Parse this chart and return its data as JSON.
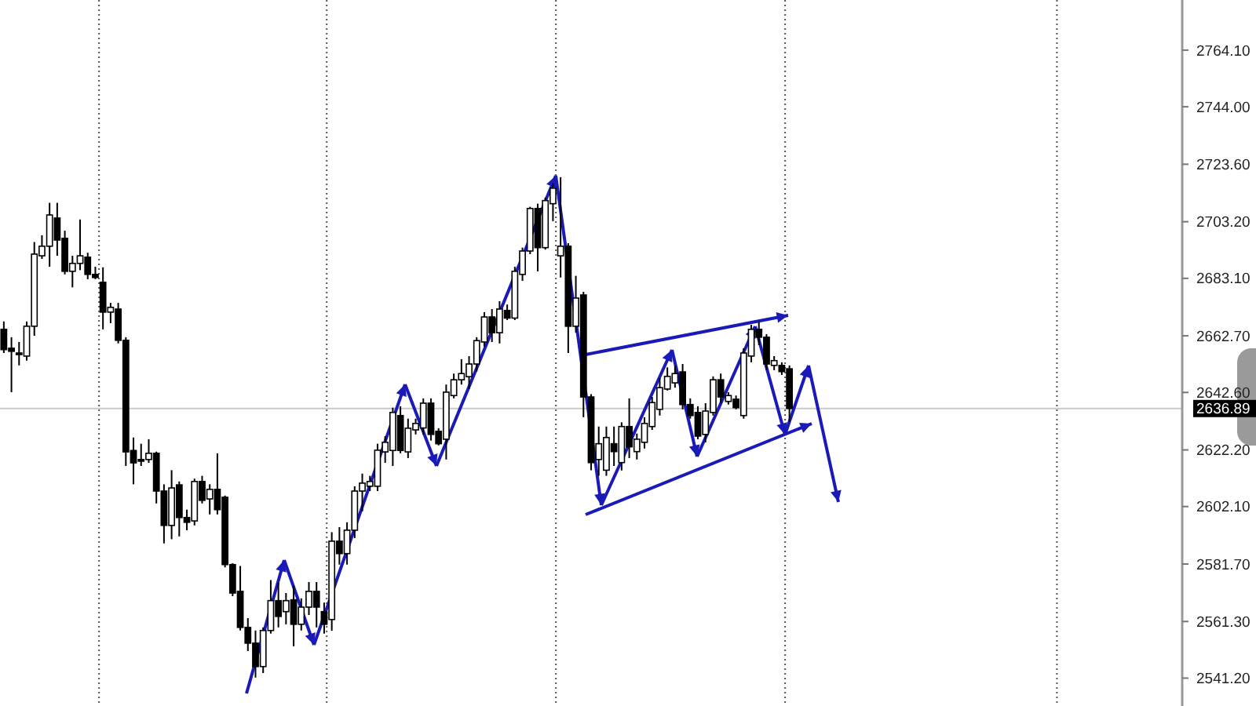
{
  "chart_data": {
    "type": "candlestick",
    "categories": [
      null,
      null,
      null,
      null,
      null,
      null,
      null,
      null,
      null,
      null,
      null,
      null,
      null,
      null,
      null,
      null,
      null,
      null,
      null,
      null,
      null,
      null,
      null,
      null,
      null,
      null,
      null,
      null,
      null,
      null,
      null,
      null,
      null,
      null,
      null,
      null,
      null,
      null,
      null,
      null,
      null,
      null,
      null,
      null,
      null,
      null,
      null,
      null,
      null,
      null,
      null,
      null,
      null,
      null,
      null,
      null,
      null,
      null,
      null,
      null,
      null,
      null,
      null,
      null,
      null,
      null,
      null,
      null,
      null,
      null,
      null,
      null,
      null,
      null,
      null,
      null,
      null,
      null,
      null,
      null,
      null,
      null,
      null,
      null,
      null,
      null,
      null,
      null,
      null,
      null,
      null,
      null,
      null,
      null,
      null,
      null,
      null,
      null,
      null,
      null,
      null,
      null,
      null,
      null,
      null,
      null,
      null,
      null,
      null,
      null,
      null,
      null,
      null,
      null,
      null,
      null,
      null,
      null,
      null,
      null,
      null,
      null,
      null,
      null,
      null,
      null,
      null,
      null,
      null,
      null,
      null,
      null,
      null,
      null,
      null,
      null,
      null,
      null,
      null,
      null,
      null,
      null,
      null,
      null,
      null,
      null,
      null,
      null,
      null,
      null,
      null,
      null,
      null,
      null,
      null
    ],
    "ohlc": [
      [
        2665.0,
        2667.8,
        2656.6,
        2657.8
      ],
      [
        2658.3,
        2662.2,
        2642.7,
        2657.2
      ],
      [
        2656.6,
        2660.5,
        2652.2,
        2656.1
      ],
      [
        2655.5,
        2667.8,
        2653.9,
        2666.1
      ],
      [
        2666.1,
        2696.0,
        2662.7,
        2691.7
      ],
      [
        2691.1,
        2698.4,
        2690.0,
        2694.5
      ],
      [
        2694.5,
        2709.9,
        2687.2,
        2705.6
      ],
      [
        2704.5,
        2709.9,
        2691.1,
        2696.7
      ],
      [
        2697.3,
        2700.0,
        2684.5,
        2685.6
      ],
      [
        2685.6,
        2691.1,
        2679.9,
        2688.4
      ],
      [
        2688.4,
        2704.0,
        2686.0,
        2691.1
      ],
      [
        2690.6,
        2692.2,
        2682.8,
        2684.5
      ],
      [
        2684.5,
        2687.2,
        2682.8,
        2683.4
      ],
      [
        2681.7,
        2687.0,
        2665.0,
        2671.1
      ],
      [
        2671.1,
        2674.4,
        2667.2,
        2672.8
      ],
      [
        2672.2,
        2674.4,
        2660.0,
        2661.1
      ],
      [
        2661.1,
        2662.2,
        2616.5,
        2621.5
      ],
      [
        2622.0,
        2626.6,
        2610.0,
        2617.6
      ],
      [
        2618.8,
        2624.4,
        2616.5,
        2618.2
      ],
      [
        2618.8,
        2626.0,
        2617.6,
        2621.0
      ],
      [
        2621.0,
        2621.6,
        2603.2,
        2607.6
      ],
      [
        2607.6,
        2610.0,
        2589.0,
        2595.4
      ],
      [
        2595.4,
        2615.0,
        2590.5,
        2608.7
      ],
      [
        2609.8,
        2611.0,
        2591.5,
        2598.2
      ],
      [
        2598.2,
        2601.0,
        2593.7,
        2596.5
      ],
      [
        2597.0,
        2612.0,
        2595.4,
        2611.0
      ],
      [
        2611.0,
        2613.0,
        2603.2,
        2604.3
      ],
      [
        2604.8,
        2610.0,
        2599.3,
        2608.2
      ],
      [
        2608.2,
        2621.0,
        2599.3,
        2601.0
      ],
      [
        2605.4,
        2606.0,
        2580.5,
        2581.5
      ],
      [
        2581.5,
        2582.0,
        2570.3,
        2571.4
      ],
      [
        2572.0,
        2581.0,
        2558.1,
        2559.2
      ],
      [
        2559.2,
        2562.5,
        2550.8,
        2553.6
      ],
      [
        2553.6,
        2558.1,
        2541.4,
        2545.3
      ],
      [
        2545.3,
        2559.2,
        2543.0,
        2558.1
      ],
      [
        2558.1,
        2576.0,
        2557.0,
        2568.7
      ],
      [
        2568.7,
        2575.0,
        2559.2,
        2563.1
      ],
      [
        2564.8,
        2571.4,
        2560.3,
        2568.7
      ],
      [
        2569.0,
        2574.0,
        2552.5,
        2560.3
      ],
      [
        2560.3,
        2569.5,
        2558.1,
        2566.4
      ],
      [
        2566.4,
        2575.3,
        2563.6,
        2572.0
      ],
      [
        2572.0,
        2575.3,
        2559.2,
        2566.4
      ],
      [
        2564.8,
        2568.0,
        2557.0,
        2560.3
      ],
      [
        2562.0,
        2593.0,
        2558.0,
        2589.8
      ],
      [
        2589.8,
        2594.8,
        2581.5,
        2585.4
      ],
      [
        2585.4,
        2596.5,
        2581.5,
        2593.7
      ],
      [
        2593.7,
        2609.3,
        2590.9,
        2607.6
      ],
      [
        2607.6,
        2613.8,
        2600.4,
        2610.4
      ],
      [
        2609.3,
        2613.0,
        2607.6,
        2611.0
      ],
      [
        2609.3,
        2624.4,
        2607.6,
        2622.1
      ],
      [
        2621.5,
        2627.1,
        2617.6,
        2624.9
      ],
      [
        2622.0,
        2637.2,
        2616.5,
        2635.5
      ],
      [
        2634.4,
        2637.7,
        2621.0,
        2622.0
      ],
      [
        2621.5,
        2633.3,
        2619.3,
        2629.9
      ],
      [
        2629.3,
        2633.3,
        2627.7,
        2631.6
      ],
      [
        2630.0,
        2640.5,
        2627.7,
        2638.8
      ],
      [
        2638.8,
        2640.5,
        2625.5,
        2627.7
      ],
      [
        2628.8,
        2629.9,
        2623.8,
        2624.4
      ],
      [
        2626.0,
        2645.4,
        2618.8,
        2642.7
      ],
      [
        2641.5,
        2649.3,
        2640.5,
        2647.1
      ],
      [
        2647.1,
        2654.4,
        2645.4,
        2649.3
      ],
      [
        2648.2,
        2655.5,
        2643.8,
        2652.7
      ],
      [
        2652.7,
        2662.2,
        2650.0,
        2661.0
      ],
      [
        2660.5,
        2671.1,
        2658.9,
        2669.4
      ],
      [
        2669.4,
        2672.2,
        2660.5,
        2663.8
      ],
      [
        2663.8,
        2675.0,
        2660.0,
        2672.2
      ],
      [
        2671.7,
        2673.8,
        2668.3,
        2669.0
      ],
      [
        2669.0,
        2687.2,
        2668.3,
        2685.6
      ],
      [
        2684.5,
        2694.0,
        2682.2,
        2692.8
      ],
      [
        2692.8,
        2708.5,
        2691.7,
        2707.9
      ],
      [
        2707.9,
        2709.6,
        2685.6,
        2694.0
      ],
      [
        2694.0,
        2711.8,
        2693.3,
        2710.7
      ],
      [
        2709.6,
        2716.8,
        2703.4,
        2715.1
      ],
      [
        2691.1,
        2719.0,
        2683.4,
        2694.5
      ],
      [
        2694.5,
        2695.6,
        2656.6,
        2666.1
      ],
      [
        2666.1,
        2684.0,
        2663.8,
        2676.1
      ],
      [
        2677.2,
        2678.3,
        2633.8,
        2641.0
      ],
      [
        2641.0,
        2642.0,
        2615.0,
        2617.7
      ],
      [
        2618.8,
        2630.5,
        2613.0,
        2624.4
      ],
      [
        2615.0,
        2630.5,
        2613.0,
        2626.6
      ],
      [
        2624.4,
        2630.5,
        2616.5,
        2621.6
      ],
      [
        2617.7,
        2632.0,
        2614.9,
        2630.5
      ],
      [
        2630.5,
        2640.5,
        2619.3,
        2623.3
      ],
      [
        2621.6,
        2628.0,
        2618.8,
        2626.0
      ],
      [
        2624.9,
        2633.8,
        2622.7,
        2631.6
      ],
      [
        2630.5,
        2641.0,
        2629.3,
        2639.0
      ],
      [
        2636.6,
        2647.7,
        2634.4,
        2644.3
      ],
      [
        2643.8,
        2651.5,
        2643.3,
        2648.3
      ],
      [
        2646.0,
        2652.0,
        2644.3,
        2649.3
      ],
      [
        2649.9,
        2652.7,
        2636.6,
        2638.3
      ],
      [
        2638.3,
        2640.5,
        2633.3,
        2634.4
      ],
      [
        2635.5,
        2637.7,
        2626.0,
        2627.1
      ],
      [
        2627.7,
        2638.8,
        2624.9,
        2636.0
      ],
      [
        2635.5,
        2648.3,
        2634.4,
        2647.1
      ],
      [
        2647.1,
        2649.3,
        2638.8,
        2641.0
      ],
      [
        2639.4,
        2642.7,
        2638.3,
        2641.5
      ],
      [
        2640.2,
        2641.5,
        2636.6,
        2637.2
      ],
      [
        2634.4,
        2658.3,
        2633.3,
        2656.6
      ],
      [
        2655.5,
        2666.6,
        2653.3,
        2665.0
      ],
      [
        2665.0,
        2667.8,
        2659.4,
        2662.2
      ],
      [
        2662.2,
        2663.3,
        2650.5,
        2652.7
      ],
      [
        2652.2,
        2655.5,
        2650.5,
        2653.9
      ],
      [
        2652.2,
        2653.3,
        2648.8,
        2650.0
      ],
      [
        2651.0,
        2652.2,
        2632.2,
        2636.9
      ],
      null,
      null,
      null,
      null,
      null,
      null,
      null,
      null,
      null,
      null,
      null,
      null,
      null,
      null,
      null,
      null,
      null,
      null,
      null,
      null,
      null,
      null,
      null,
      null,
      null,
      null,
      null,
      null,
      null,
      null,
      null,
      null,
      null,
      null,
      null,
      null,
      null,
      null,
      null,
      null,
      null,
      null,
      null,
      null,
      null,
      null,
      null,
      null,
      null,
      null,
      null
    ],
    "ylim": [
      2531.3,
      2781.9
    ],
    "yticks": [
      {
        "value": 2541.2,
        "label": "2541.20"
      },
      {
        "value": 2561.3,
        "label": "2561.30"
      },
      {
        "value": 2581.7,
        "label": "2581.70"
      },
      {
        "value": 2602.1,
        "label": "2602.10"
      },
      {
        "value": 2622.2,
        "label": "2622.20"
      },
      {
        "value": 2642.6,
        "label": "2642.60"
      },
      {
        "value": 2662.7,
        "label": "2662.70"
      },
      {
        "value": 2683.1,
        "label": "2683.10"
      },
      {
        "value": 2703.2,
        "label": "2703.20"
      },
      {
        "value": 2723.6,
        "label": "2723.60"
      },
      {
        "value": 2744.0,
        "label": "2744.00"
      },
      {
        "value": 2764.1,
        "label": "2764.10"
      }
    ],
    "ref_lines": [
      {
        "axis": "y",
        "value": 2636.89,
        "label": "2636.89",
        "color": "#c8c8c8"
      }
    ]
  }
}
